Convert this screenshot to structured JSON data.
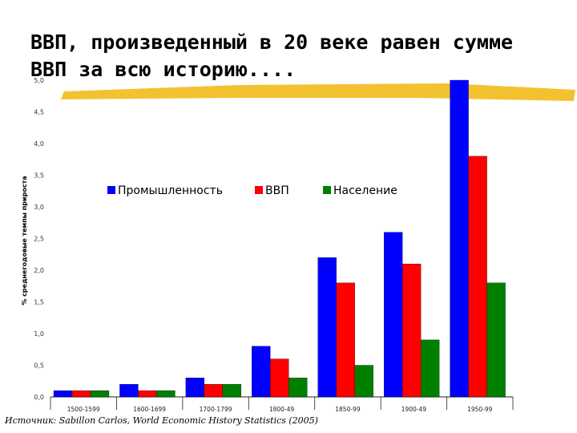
{
  "slide": {
    "title": "ВВП, произведенный в 20 веке равен сумме ВВП за всю историю....",
    "source": "Источник: Sabillon Carlos, World Economic History Statistics (2005)",
    "accent_underline_color": "#f2c230"
  },
  "chart_data": {
    "type": "bar",
    "title": "",
    "xlabel": "",
    "ylabel": "% среднегодовые темпы прироста",
    "categories": [
      "1500-1599",
      "1600-1699",
      "1700-1799",
      "1800-49",
      "1850-99",
      "1900-49",
      "1950-99"
    ],
    "series": [
      {
        "name": "Промышленность",
        "color": "#0000ff",
        "values": [
          0.1,
          0.2,
          0.3,
          0.8,
          2.2,
          2.6,
          5.0
        ]
      },
      {
        "name": "ВВП",
        "color": "#ff0000",
        "values": [
          0.1,
          0.1,
          0.2,
          0.6,
          1.8,
          2.1,
          3.8
        ]
      },
      {
        "name": "Население",
        "color": "#008000",
        "values": [
          0.1,
          0.1,
          0.2,
          0.3,
          0.5,
          0.9,
          1.8
        ]
      }
    ],
    "ylim": [
      0,
      5
    ],
    "yticks": [
      "0,0",
      "0,5",
      "1,0",
      "1,5",
      "2,0",
      "2,5",
      "3,0",
      "3,5",
      "4,0",
      "4,5",
      "5,0"
    ],
    "legend_position": "top-center",
    "grid": false
  }
}
